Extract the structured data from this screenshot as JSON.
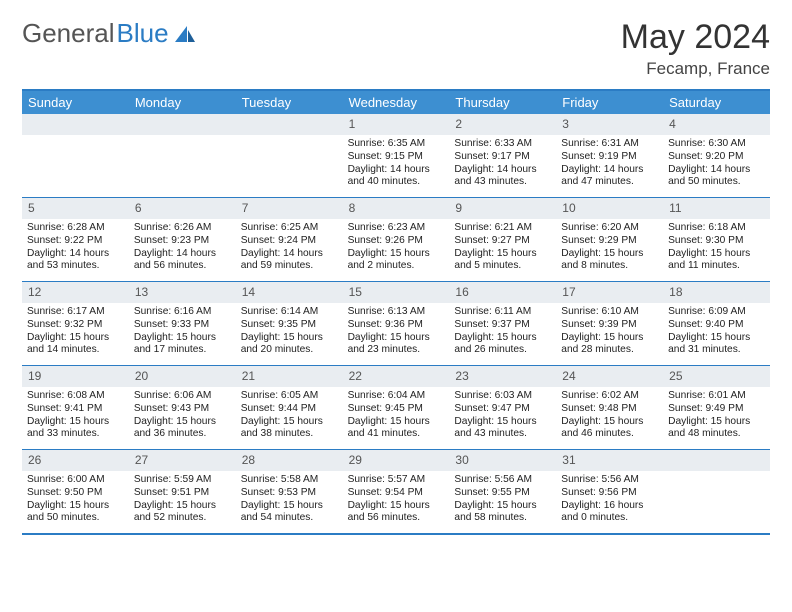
{
  "brand": {
    "part1": "General",
    "part2": "Blue"
  },
  "title": "May 2024",
  "location": "Fecamp, France",
  "weekdays": [
    "Sunday",
    "Monday",
    "Tuesday",
    "Wednesday",
    "Thursday",
    "Friday",
    "Saturday"
  ],
  "colors": {
    "header_bar": "#3d8fd1",
    "border": "#2b7cc4",
    "daynum_bg": "#e9edf1",
    "text": "#333333",
    "background": "#ffffff"
  },
  "weeks": [
    [
      {
        "n": "",
        "sr": "",
        "ss": "",
        "dl": ""
      },
      {
        "n": "",
        "sr": "",
        "ss": "",
        "dl": ""
      },
      {
        "n": "",
        "sr": "",
        "ss": "",
        "dl": ""
      },
      {
        "n": "1",
        "sr": "Sunrise: 6:35 AM",
        "ss": "Sunset: 9:15 PM",
        "dl": "Daylight: 14 hours and 40 minutes."
      },
      {
        "n": "2",
        "sr": "Sunrise: 6:33 AM",
        "ss": "Sunset: 9:17 PM",
        "dl": "Daylight: 14 hours and 43 minutes."
      },
      {
        "n": "3",
        "sr": "Sunrise: 6:31 AM",
        "ss": "Sunset: 9:19 PM",
        "dl": "Daylight: 14 hours and 47 minutes."
      },
      {
        "n": "4",
        "sr": "Sunrise: 6:30 AM",
        "ss": "Sunset: 9:20 PM",
        "dl": "Daylight: 14 hours and 50 minutes."
      }
    ],
    [
      {
        "n": "5",
        "sr": "Sunrise: 6:28 AM",
        "ss": "Sunset: 9:22 PM",
        "dl": "Daylight: 14 hours and 53 minutes."
      },
      {
        "n": "6",
        "sr": "Sunrise: 6:26 AM",
        "ss": "Sunset: 9:23 PM",
        "dl": "Daylight: 14 hours and 56 minutes."
      },
      {
        "n": "7",
        "sr": "Sunrise: 6:25 AM",
        "ss": "Sunset: 9:24 PM",
        "dl": "Daylight: 14 hours and 59 minutes."
      },
      {
        "n": "8",
        "sr": "Sunrise: 6:23 AM",
        "ss": "Sunset: 9:26 PM",
        "dl": "Daylight: 15 hours and 2 minutes."
      },
      {
        "n": "9",
        "sr": "Sunrise: 6:21 AM",
        "ss": "Sunset: 9:27 PM",
        "dl": "Daylight: 15 hours and 5 minutes."
      },
      {
        "n": "10",
        "sr": "Sunrise: 6:20 AM",
        "ss": "Sunset: 9:29 PM",
        "dl": "Daylight: 15 hours and 8 minutes."
      },
      {
        "n": "11",
        "sr": "Sunrise: 6:18 AM",
        "ss": "Sunset: 9:30 PM",
        "dl": "Daylight: 15 hours and 11 minutes."
      }
    ],
    [
      {
        "n": "12",
        "sr": "Sunrise: 6:17 AM",
        "ss": "Sunset: 9:32 PM",
        "dl": "Daylight: 15 hours and 14 minutes."
      },
      {
        "n": "13",
        "sr": "Sunrise: 6:16 AM",
        "ss": "Sunset: 9:33 PM",
        "dl": "Daylight: 15 hours and 17 minutes."
      },
      {
        "n": "14",
        "sr": "Sunrise: 6:14 AM",
        "ss": "Sunset: 9:35 PM",
        "dl": "Daylight: 15 hours and 20 minutes."
      },
      {
        "n": "15",
        "sr": "Sunrise: 6:13 AM",
        "ss": "Sunset: 9:36 PM",
        "dl": "Daylight: 15 hours and 23 minutes."
      },
      {
        "n": "16",
        "sr": "Sunrise: 6:11 AM",
        "ss": "Sunset: 9:37 PM",
        "dl": "Daylight: 15 hours and 26 minutes."
      },
      {
        "n": "17",
        "sr": "Sunrise: 6:10 AM",
        "ss": "Sunset: 9:39 PM",
        "dl": "Daylight: 15 hours and 28 minutes."
      },
      {
        "n": "18",
        "sr": "Sunrise: 6:09 AM",
        "ss": "Sunset: 9:40 PM",
        "dl": "Daylight: 15 hours and 31 minutes."
      }
    ],
    [
      {
        "n": "19",
        "sr": "Sunrise: 6:08 AM",
        "ss": "Sunset: 9:41 PM",
        "dl": "Daylight: 15 hours and 33 minutes."
      },
      {
        "n": "20",
        "sr": "Sunrise: 6:06 AM",
        "ss": "Sunset: 9:43 PM",
        "dl": "Daylight: 15 hours and 36 minutes."
      },
      {
        "n": "21",
        "sr": "Sunrise: 6:05 AM",
        "ss": "Sunset: 9:44 PM",
        "dl": "Daylight: 15 hours and 38 minutes."
      },
      {
        "n": "22",
        "sr": "Sunrise: 6:04 AM",
        "ss": "Sunset: 9:45 PM",
        "dl": "Daylight: 15 hours and 41 minutes."
      },
      {
        "n": "23",
        "sr": "Sunrise: 6:03 AM",
        "ss": "Sunset: 9:47 PM",
        "dl": "Daylight: 15 hours and 43 minutes."
      },
      {
        "n": "24",
        "sr": "Sunrise: 6:02 AM",
        "ss": "Sunset: 9:48 PM",
        "dl": "Daylight: 15 hours and 46 minutes."
      },
      {
        "n": "25",
        "sr": "Sunrise: 6:01 AM",
        "ss": "Sunset: 9:49 PM",
        "dl": "Daylight: 15 hours and 48 minutes."
      }
    ],
    [
      {
        "n": "26",
        "sr": "Sunrise: 6:00 AM",
        "ss": "Sunset: 9:50 PM",
        "dl": "Daylight: 15 hours and 50 minutes."
      },
      {
        "n": "27",
        "sr": "Sunrise: 5:59 AM",
        "ss": "Sunset: 9:51 PM",
        "dl": "Daylight: 15 hours and 52 minutes."
      },
      {
        "n": "28",
        "sr": "Sunrise: 5:58 AM",
        "ss": "Sunset: 9:53 PM",
        "dl": "Daylight: 15 hours and 54 minutes."
      },
      {
        "n": "29",
        "sr": "Sunrise: 5:57 AM",
        "ss": "Sunset: 9:54 PM",
        "dl": "Daylight: 15 hours and 56 minutes."
      },
      {
        "n": "30",
        "sr": "Sunrise: 5:56 AM",
        "ss": "Sunset: 9:55 PM",
        "dl": "Daylight: 15 hours and 58 minutes."
      },
      {
        "n": "31",
        "sr": "Sunrise: 5:56 AM",
        "ss": "Sunset: 9:56 PM",
        "dl": "Daylight: 16 hours and 0 minutes."
      },
      {
        "n": "",
        "sr": "",
        "ss": "",
        "dl": ""
      }
    ]
  ]
}
